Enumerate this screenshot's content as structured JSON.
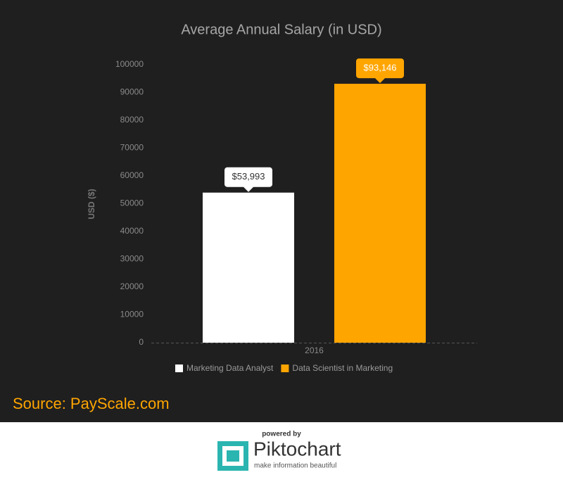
{
  "chart_data": {
    "type": "bar",
    "title": "Average Annual Salary (in USD)",
    "y_label": "USD ($)",
    "categories": [
      "2016"
    ],
    "series": [
      {
        "name": "Marketing Data Analyst",
        "color": "#ffffff",
        "values": [
          53993
        ],
        "value_labels": [
          "$53,993"
        ]
      },
      {
        "name": "Data Scientist in Marketing",
        "color": "#ffa500",
        "values": [
          93146
        ],
        "value_labels": [
          "$93,146"
        ]
      }
    ],
    "ylim": [
      0,
      100000
    ],
    "yticks": [
      0,
      10000,
      20000,
      30000,
      40000,
      50000,
      60000,
      70000,
      80000,
      90000,
      100000
    ],
    "grid": false,
    "legend": "bottom"
  },
  "source": "Source: PayScale.com",
  "footer": {
    "powered_by": "powered by",
    "brand": "Piktochart",
    "tagline": "make information beautiful"
  }
}
